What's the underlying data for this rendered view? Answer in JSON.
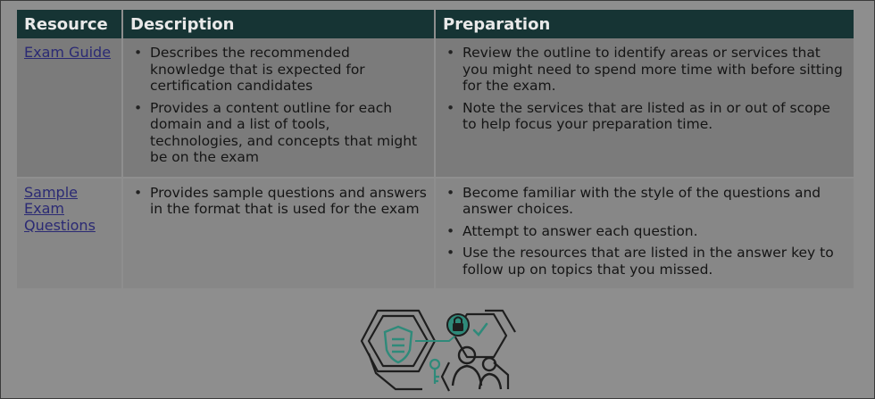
{
  "table": {
    "headers": [
      "Resource",
      "Description",
      "Preparation"
    ],
    "rows": [
      {
        "resource_lines": [
          "Exam Guide"
        ],
        "description": [
          "Describes the recommended knowledge that is expected for certification candidates",
          "Provides a content outline for each domain and a list of tools, technologies, and concepts that might be on the exam"
        ],
        "preparation": [
          "Review the outline to identify areas or services that you might need to spend more time with before sitting for the exam.",
          "Note the services that are listed as in or out of scope to help focus your preparation time."
        ]
      },
      {
        "resource_lines": [
          "Sample",
          "Exam",
          "Questions"
        ],
        "description": [
          "Provides sample questions and answers in the format that is used for the exam"
        ],
        "preparation": [
          "Become familiar with the style of the questions and answer choices.",
          "Attempt to answer each question.",
          "Use the resources that are listed in the answer key to follow up on topics that you missed."
        ]
      }
    ]
  },
  "colors": {
    "header_bg": "#163434",
    "header_text": "#e9e9e9",
    "link": "#2b2a74",
    "icon_teal": "#2f8a7a",
    "icon_line": "#1e1e1e"
  },
  "icons": [
    "shield-icon",
    "lock-icon",
    "checkmark-icon",
    "key-icon",
    "people-icon"
  ]
}
